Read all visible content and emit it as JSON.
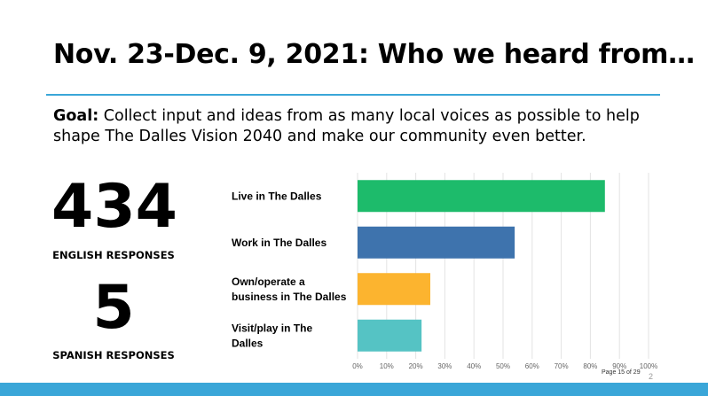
{
  "slide": {
    "title": "Nov. 23-Dec. 9, 2021: Who we heard from…",
    "goal_label": "Goal:",
    "goal_text": " Collect input and ideas from as many local voices as possible to help shape The Dalles Vision 2040 and make our community even better.",
    "accent_color": "#3aa6d8",
    "page_indicator": "Page 15 of 29",
    "slide_number": "2"
  },
  "stats": [
    {
      "value": "434",
      "caption": "ENGLISH RESPONSES"
    },
    {
      "value": "5",
      "caption": "SPANISH RESPONSES"
    }
  ],
  "chart_data": {
    "type": "bar",
    "orientation": "horizontal",
    "categories": [
      [
        "Live in The Dalles"
      ],
      [
        "Work in The Dalles"
      ],
      [
        "Own/operate a",
        "business in The Dalles"
      ],
      [
        "Visit/play in The",
        "Dalles"
      ]
    ],
    "values": [
      85,
      54,
      25,
      22
    ],
    "colors": [
      "#1dbb6b",
      "#3e73ad",
      "#fcb42f",
      "#55c3c4"
    ],
    "xlim": [
      0,
      100
    ],
    "x_ticks": [
      "0%",
      "10%",
      "20%",
      "30%",
      "40%",
      "50%",
      "60%",
      "70%",
      "80%",
      "90%",
      "100%"
    ],
    "grid": true
  }
}
